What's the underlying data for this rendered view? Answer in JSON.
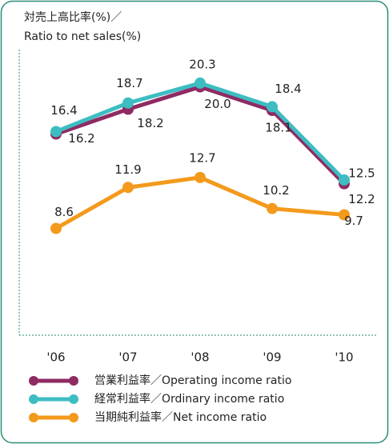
{
  "chart_data": {
    "type": "line",
    "title": [
      "対売上高比率(%)／",
      "Ratio to net sales(%)"
    ],
    "categories": [
      "'06",
      "'07",
      "'08",
      "'09",
      "'10"
    ],
    "series": [
      {
        "name": "営業利益率／Operating income ratio",
        "color": "#8e2b63",
        "values": [
          16.2,
          18.2,
          20.0,
          18.1,
          12.2
        ],
        "value_labels": [
          "16.2",
          "18.2",
          "20.0",
          "18.1",
          "12.2"
        ]
      },
      {
        "name": "経常利益率／Ordinary income ratio",
        "color": "#3dbdc2",
        "values": [
          16.4,
          18.7,
          20.3,
          18.4,
          12.5
        ]
      },
      {
        "name": "当期純利益率／Net income ratio",
        "color": "#f39a1c",
        "values": [
          8.6,
          11.9,
          12.7,
          10.2,
          9.7
        ]
      }
    ],
    "ylim": [
      0,
      23
    ]
  }
}
